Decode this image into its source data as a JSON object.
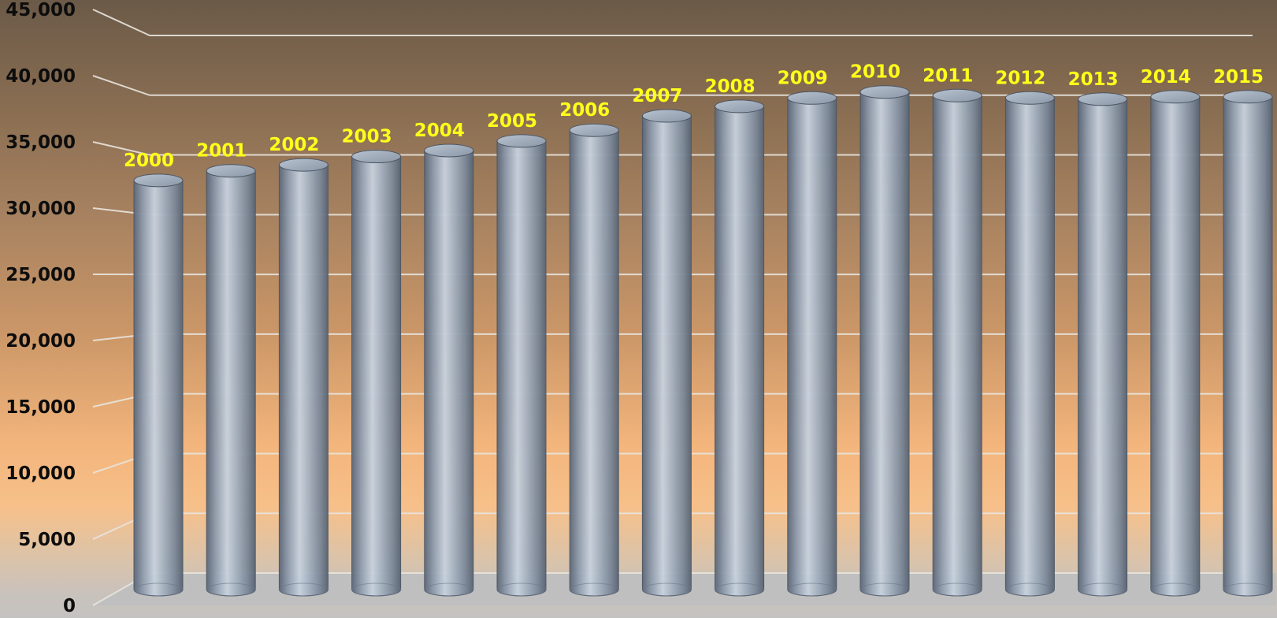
{
  "chart_data": {
    "type": "bar",
    "style": "3d-cylinder",
    "categories": [
      "2000",
      "2001",
      "2002",
      "2003",
      "2004",
      "2005",
      "2006",
      "2007",
      "2008",
      "2009",
      "2010",
      "2011",
      "2012",
      "2013",
      "2014",
      "2015"
    ],
    "values": [
      33000,
      33800,
      34300,
      35000,
      35500,
      36300,
      37200,
      38400,
      39200,
      39900,
      40400,
      40100,
      39900,
      39800,
      40000,
      40000
    ],
    "data_labels": [
      "2000",
      "2001",
      "2002",
      "2003",
      "2004",
      "2005",
      "2006",
      "2007",
      "2008",
      "2009",
      "2010",
      "2011",
      "2012",
      "2013",
      "2014",
      "2015"
    ],
    "yticks": [
      0,
      5000,
      10000,
      15000,
      20000,
      25000,
      30000,
      35000,
      40000,
      45000
    ],
    "ytick_labels": [
      "0",
      "5,000",
      "10,000",
      "15,000",
      "20,000",
      "25,000",
      "30,000",
      "35,000",
      "40,000",
      "45,000"
    ],
    "ylim": [
      0,
      45000
    ],
    "title": "",
    "xlabel": "",
    "ylabel": "",
    "grid": true,
    "legend": "none",
    "colors": {
      "bar": "#9aa8b8",
      "data_label": "#ffff1a",
      "tick_label": "#0d0d0d",
      "gridline": "#e8e4de"
    }
  }
}
